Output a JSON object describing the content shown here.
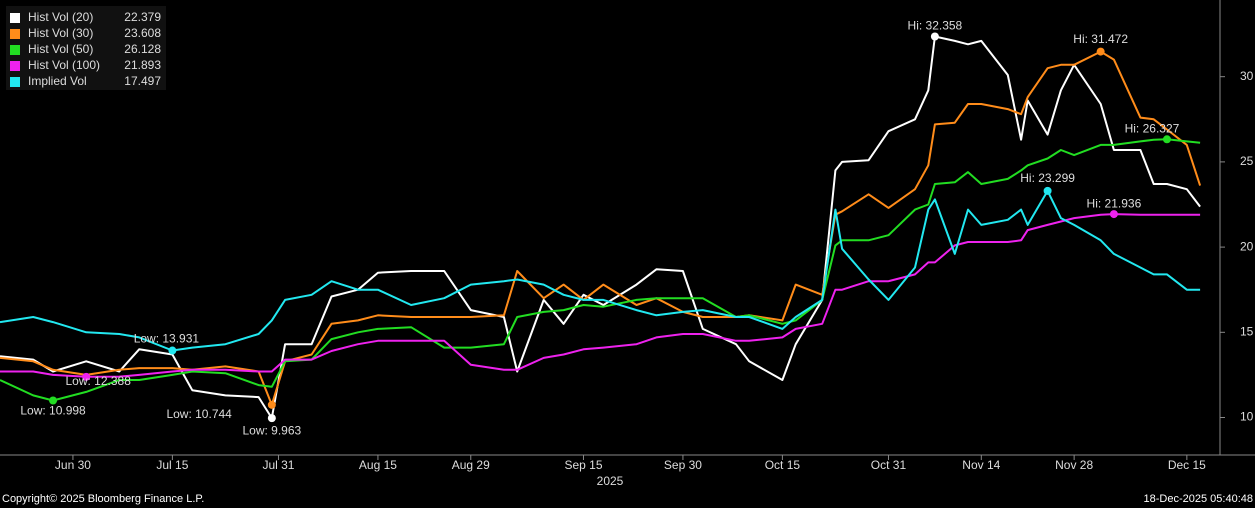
{
  "chart_data": {
    "type": "line",
    "x": [
      "2025-06-19",
      "2025-06-24",
      "2025-06-27",
      "2025-07-02",
      "2025-07-07",
      "2025-07-10",
      "2025-07-15",
      "2025-07-18",
      "2025-07-23",
      "2025-07-28",
      "2025-07-30",
      "2025-08-01",
      "2025-08-05",
      "2025-08-08",
      "2025-08-12",
      "2025-08-15",
      "2025-08-20",
      "2025-08-25",
      "2025-08-29",
      "2025-09-03",
      "2025-09-05",
      "2025-09-09",
      "2025-09-12",
      "2025-09-15",
      "2025-09-18",
      "2025-09-23",
      "2025-09-26",
      "2025-09-30",
      "2025-10-03",
      "2025-10-08",
      "2025-10-10",
      "2025-10-15",
      "2025-10-17",
      "2025-10-21",
      "2025-10-23",
      "2025-10-24",
      "2025-10-28",
      "2025-10-31",
      "2025-11-04",
      "2025-11-06",
      "2025-11-07",
      "2025-11-10",
      "2025-11-12",
      "2025-11-14",
      "2025-11-18",
      "2025-11-20",
      "2025-11-21",
      "2025-11-24",
      "2025-11-26",
      "2025-11-28",
      "2025-12-02",
      "2025-12-04",
      "2025-12-08",
      "2025-12-10",
      "2025-12-12",
      "2025-12-15",
      "2025-12-17"
    ],
    "series": [
      {
        "name": "Hist Vol (20)",
        "color": "#ffffff",
        "last": 22.379,
        "values": [
          13.6,
          13.4,
          12.7,
          13.3,
          12.7,
          14.0,
          13.7,
          11.6,
          11.3,
          11.2,
          9.963,
          14.3,
          14.3,
          17.1,
          17.5,
          18.5,
          18.6,
          18.6,
          16.3,
          15.9,
          12.7,
          16.9,
          15.5,
          17.2,
          16.6,
          17.8,
          18.7,
          18.6,
          15.2,
          14.3,
          13.3,
          12.2,
          14.3,
          16.9,
          24.5,
          25.0,
          25.1,
          26.8,
          27.5,
          29.2,
          32.358,
          32.1,
          31.9,
          32.1,
          30.1,
          26.3,
          28.6,
          26.6,
          29.2,
          30.7,
          28.4,
          25.7,
          25.7,
          23.7,
          23.7,
          23.4,
          22.379
        ]
      },
      {
        "name": "Hist Vol (30)",
        "color": "#ff8c1a",
        "last": 23.608,
        "values": [
          13.5,
          13.3,
          12.8,
          12.5,
          12.8,
          12.9,
          12.9,
          12.8,
          13.0,
          12.7,
          10.744,
          13.3,
          13.7,
          15.5,
          15.7,
          16.0,
          15.9,
          15.9,
          15.9,
          16.0,
          18.6,
          17.0,
          17.8,
          16.9,
          17.8,
          16.6,
          17.0,
          16.2,
          15.9,
          15.9,
          16.0,
          15.7,
          17.8,
          17.2,
          21.9,
          22.1,
          23.1,
          22.3,
          23.4,
          24.8,
          27.2,
          27.3,
          28.4,
          28.4,
          28.1,
          27.8,
          28.8,
          30.5,
          30.7,
          30.7,
          31.472,
          31.0,
          27.6,
          27.5,
          26.9,
          26.0,
          23.608
        ]
      },
      {
        "name": "Hist Vol (50)",
        "color": "#22dd22",
        "last": 26.128,
        "values": [
          12.2,
          11.3,
          10.998,
          11.5,
          12.2,
          12.2,
          12.5,
          12.7,
          12.6,
          11.9,
          11.8,
          13.3,
          13.4,
          14.6,
          15.0,
          15.2,
          15.3,
          14.1,
          14.1,
          14.3,
          15.9,
          16.2,
          16.3,
          16.6,
          16.5,
          16.9,
          17.0,
          17.0,
          17.0,
          15.9,
          16.0,
          15.5,
          15.7,
          16.9,
          20.1,
          20.4,
          20.4,
          20.7,
          22.2,
          22.5,
          23.7,
          23.8,
          24.4,
          23.7,
          24.0,
          24.5,
          24.8,
          25.2,
          25.7,
          25.4,
          26.0,
          26.0,
          26.2,
          26.3,
          26.327,
          26.2,
          26.128
        ]
      },
      {
        "name": "Hist Vol (100)",
        "color": "#ee22ee",
        "last": 21.893,
        "values": [
          12.7,
          12.7,
          12.5,
          12.388,
          12.4,
          12.5,
          12.7,
          12.8,
          12.8,
          12.7,
          12.7,
          13.4,
          13.4,
          13.9,
          14.3,
          14.5,
          14.5,
          14.5,
          13.1,
          12.8,
          12.8,
          13.5,
          13.7,
          14.0,
          14.1,
          14.3,
          14.7,
          14.9,
          14.9,
          14.5,
          14.5,
          14.7,
          15.2,
          15.5,
          17.5,
          17.5,
          18.0,
          18.0,
          18.4,
          19.1,
          19.1,
          20.1,
          20.3,
          20.3,
          20.3,
          20.4,
          21.0,
          21.3,
          21.5,
          21.7,
          21.9,
          21.936,
          21.9,
          21.9,
          21.9,
          21.9,
          21.893
        ]
      },
      {
        "name": "Implied Vol",
        "color": "#22e8f0",
        "last": 17.497,
        "values": [
          15.6,
          15.9,
          15.6,
          15.0,
          14.9,
          14.7,
          13.931,
          14.1,
          14.3,
          14.9,
          15.7,
          16.9,
          17.2,
          18.0,
          17.5,
          17.5,
          16.6,
          17.0,
          17.8,
          18.0,
          18.1,
          17.8,
          17.2,
          16.9,
          16.9,
          16.3,
          16.0,
          16.2,
          16.3,
          15.9,
          15.9,
          15.2,
          15.9,
          16.9,
          22.2,
          19.9,
          18.1,
          16.9,
          18.8,
          22.2,
          22.8,
          19.6,
          22.2,
          21.3,
          21.6,
          22.2,
          21.3,
          23.299,
          21.7,
          21.3,
          20.4,
          19.6,
          18.8,
          18.4,
          18.4,
          17.5,
          17.497
        ]
      }
    ],
    "annotations": [
      {
        "label": "Hi: 32.358",
        "x": "2025-11-07",
        "value": 32.358,
        "color": "#ffffff"
      },
      {
        "label": "Hi: 31.472",
        "x": "2025-12-02",
        "value": 31.472,
        "color": "#ff8c1a"
      },
      {
        "label": "Hi: 26.327",
        "x": "2025-12-12",
        "value": 26.327,
        "color": "#22dd22"
      },
      {
        "label": "Hi: 23.299",
        "x": "2025-11-24",
        "value": 23.299,
        "color": "#22e8f0"
      },
      {
        "label": "Hi: 21.936",
        "x": "2025-12-04",
        "value": 21.936,
        "color": "#ee22ee"
      },
      {
        "label": "Low: 9.963",
        "x": "2025-07-30",
        "value": 9.963,
        "color": "#ffffff"
      },
      {
        "label": "Low: 10.744",
        "x": "2025-07-30",
        "value": 10.744,
        "color": "#ff8c1a"
      },
      {
        "label": "Low: 10.998",
        "x": "2025-06-27",
        "value": 10.998,
        "color": "#22dd22"
      },
      {
        "label": "Low: 12.388",
        "x": "2025-07-02",
        "value": 12.388,
        "color": "#ee22ee"
      },
      {
        "label": "Low: 13.931",
        "x": "2025-07-15",
        "value": 13.931,
        "color": "#22e8f0"
      }
    ],
    "xlim": [
      "2025-06-19",
      "2025-12-20"
    ],
    "xticks": [
      {
        "value": "2025-06-30",
        "label": "Jun 30"
      },
      {
        "value": "2025-07-15",
        "label": "Jul 15"
      },
      {
        "value": "2025-07-31",
        "label": "Jul 31"
      },
      {
        "value": "2025-08-15",
        "label": "Aug 15"
      },
      {
        "value": "2025-08-29",
        "label": "Aug 29"
      },
      {
        "value": "2025-09-15",
        "label": "Sep 15"
      },
      {
        "value": "2025-09-30",
        "label": "Sep 30"
      },
      {
        "value": "2025-10-15",
        "label": "Oct 15"
      },
      {
        "value": "2025-10-31",
        "label": "Oct 31"
      },
      {
        "value": "2025-11-14",
        "label": "Nov 14"
      },
      {
        "value": "2025-11-28",
        "label": "Nov 28"
      },
      {
        "value": "2025-12-15",
        "label": "Dec 15"
      }
    ],
    "xlabel": "2025",
    "ylim": [
      7.8,
      34.5
    ],
    "yticks": [
      10,
      15,
      20,
      25,
      30
    ],
    "y_axis_side": "right",
    "legend": "top-left",
    "footer_left": "Copyright© 2025 Bloomberg Finance L.P.",
    "footer_right": "18-Dec-2025 05:40:48"
  }
}
